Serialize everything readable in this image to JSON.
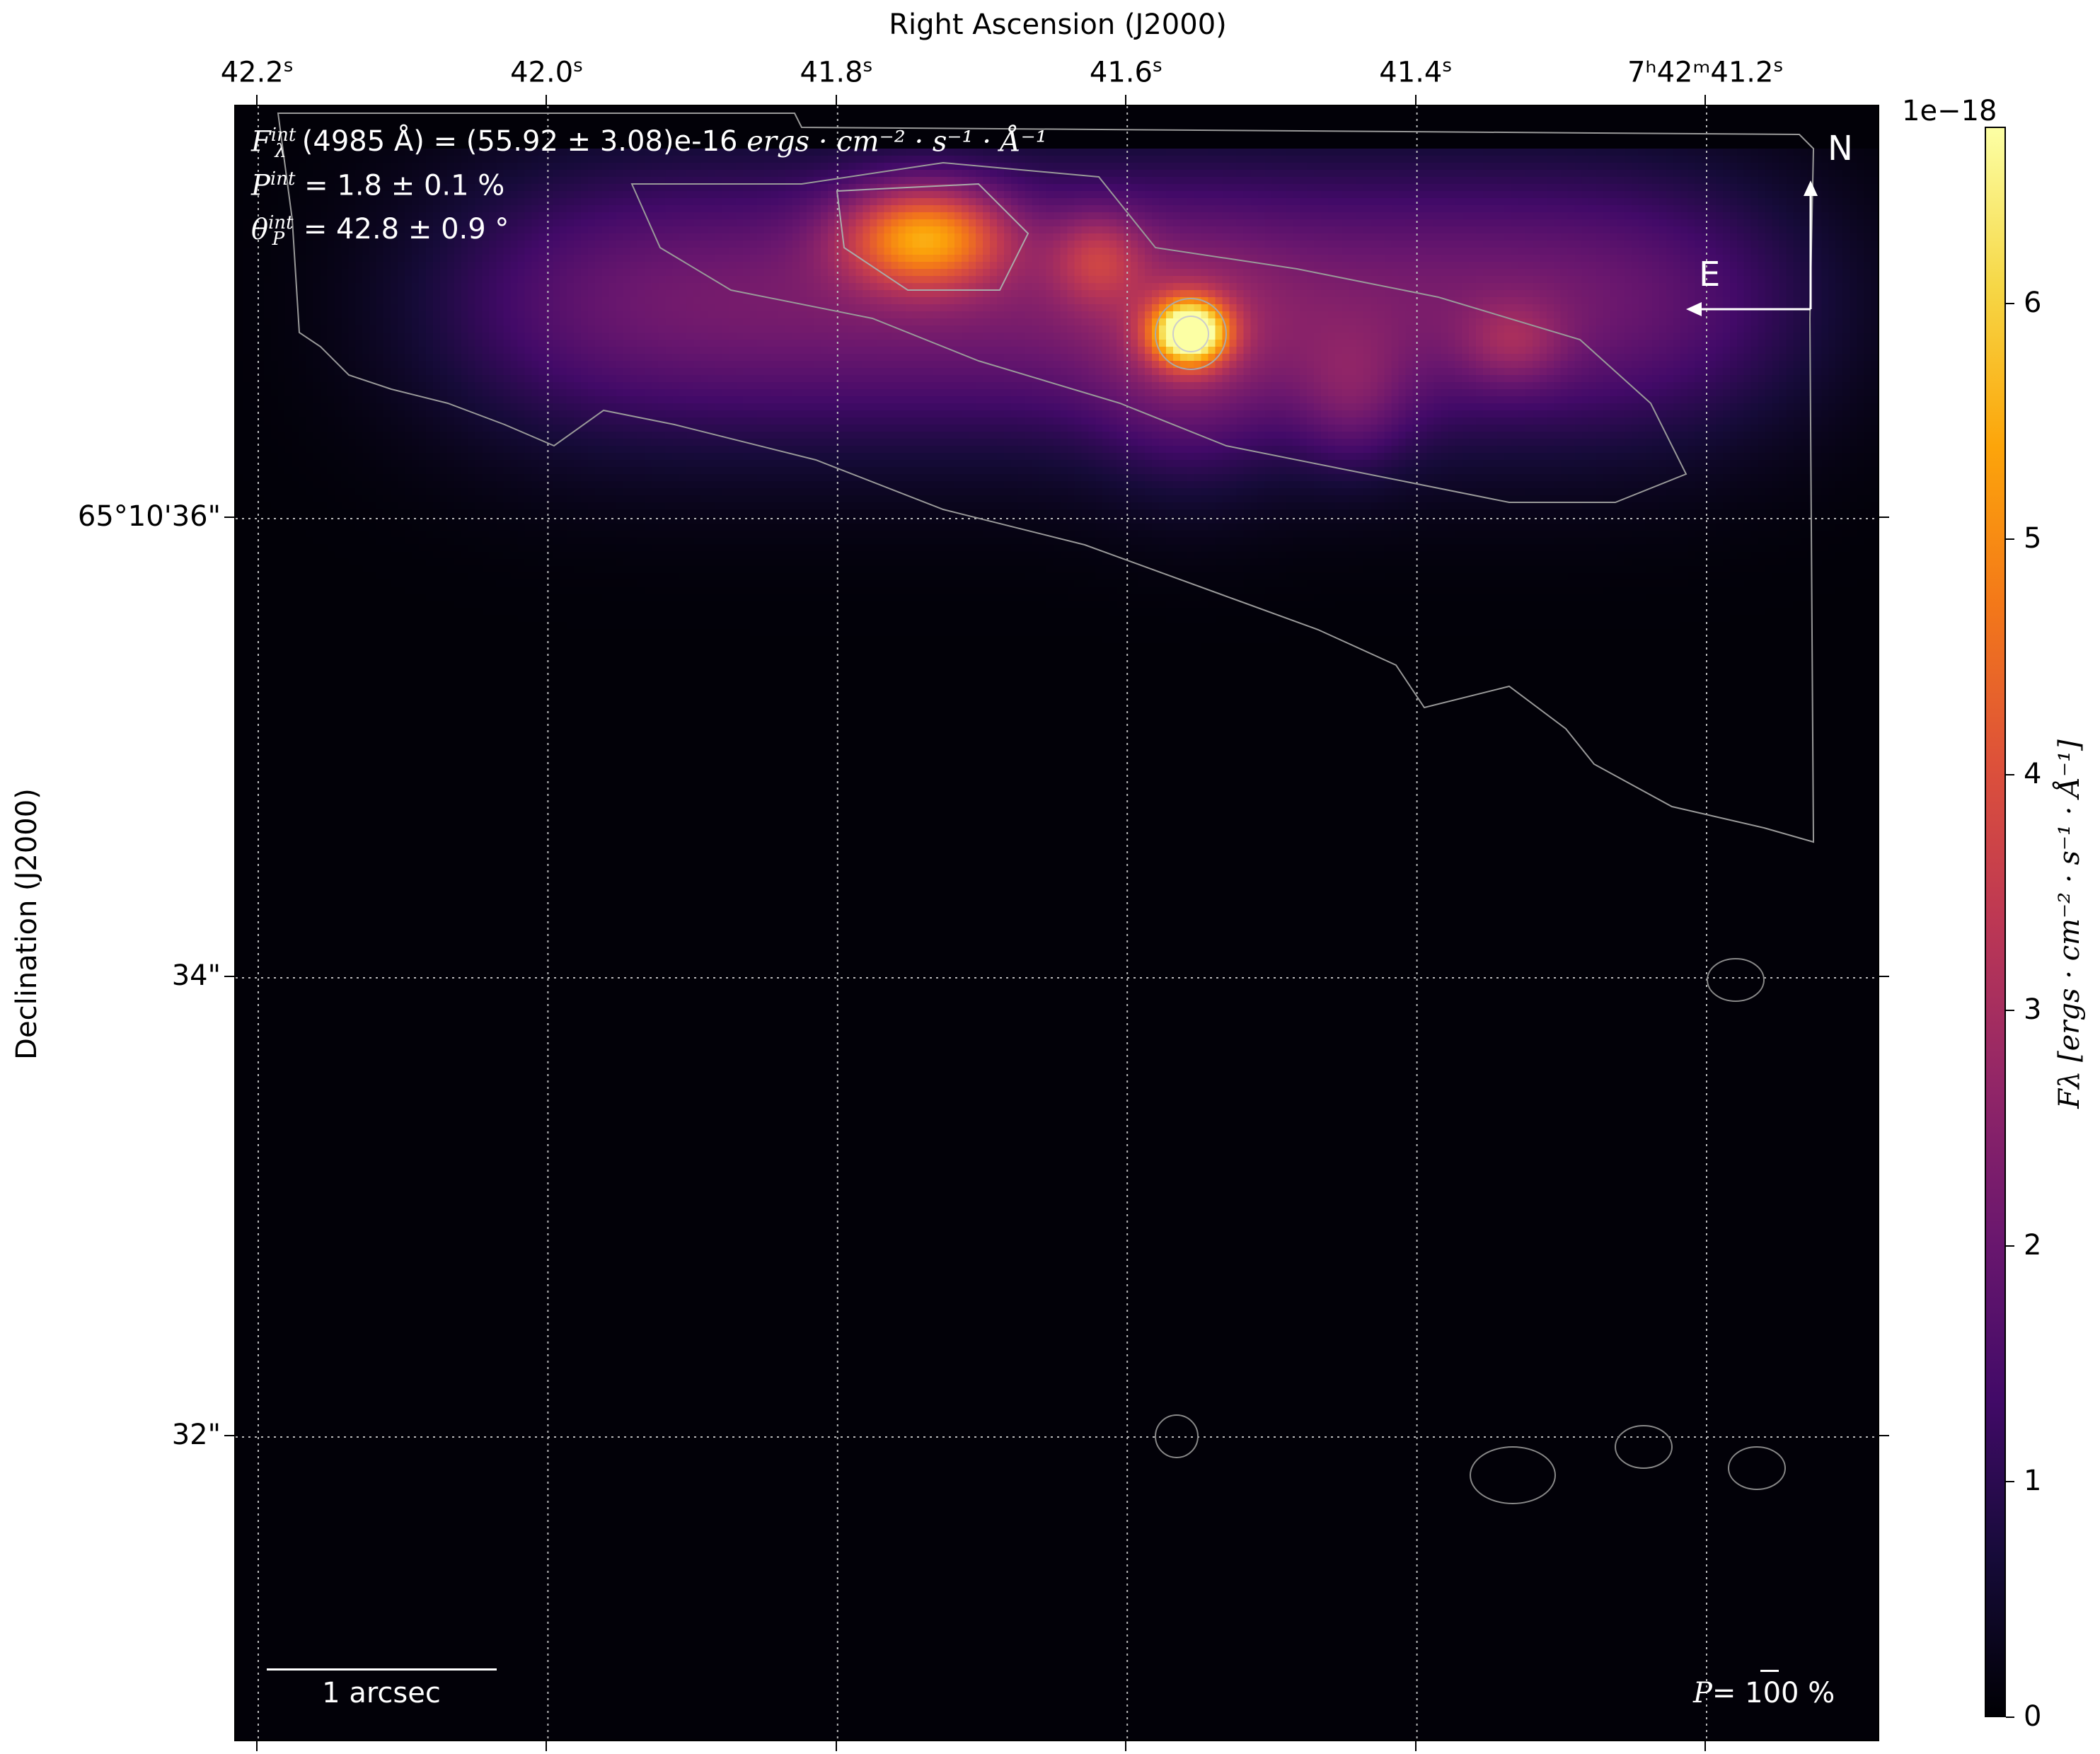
{
  "chart_data": {
    "type": "heatmap",
    "colormap": "inferno",
    "xlabel": "Right Ascension (J2000)",
    "ylabel": "Declination (J2000)",
    "x_ticks": [
      {
        "base": "42.2",
        "sup": "s",
        "value": 42.2
      },
      {
        "base": "42.0",
        "sup": "s",
        "value": 42.0
      },
      {
        "base": "41.8",
        "sup": "s",
        "value": 41.8
      },
      {
        "base": "41.6",
        "sup": "s",
        "value": 41.6
      },
      {
        "base": "41.4",
        "sup": "s",
        "value": 41.4
      },
      {
        "base": "7ʰ42ᵐ41.2",
        "sup": "s",
        "value": 41.2
      }
    ],
    "y_ticks": [
      {
        "label": "65°10'36\"",
        "value": 36
      },
      {
        "label": "34\"",
        "value": 34
      },
      {
        "label": "32\"",
        "value": 32
      }
    ],
    "grid": true,
    "colorbar": {
      "label": "Fλ [ergs · cm⁻² · s⁻¹ · Å⁻¹]",
      "offset_text": "1e−18",
      "range": [
        0,
        6.75
      ],
      "ticks": [
        "0",
        "1",
        "2",
        "3",
        "4",
        "5",
        "6"
      ]
    },
    "peaks": [
      {
        "ra": 41.556,
        "dec": 36.81,
        "value": 6.7
      },
      {
        "ra": 41.739,
        "dec": 37.23,
        "value": 5.0
      }
    ],
    "annotations": {
      "flux_line": {
        "symbol": "F",
        "sup": "int",
        "sub": "λ",
        "text": "(4985 Å) = (55.92 ± 3.08)e-16 ",
        "unit": "ergs · cm⁻² · s⁻¹ · Å⁻¹"
      },
      "pol_line": {
        "symbol": "P",
        "sup": "int",
        "text": " = 1.8 ± 0.1 %"
      },
      "angle_line": {
        "symbol": "θ",
        "sup": "int",
        "sub": "P",
        "text": " = 42.8 ± 0.9 °"
      },
      "north": "N",
      "east": "E",
      "scale_bar": "1 arcsec",
      "pol_scale": {
        "symbol": "P",
        "text": "= 100 %"
      }
    }
  }
}
